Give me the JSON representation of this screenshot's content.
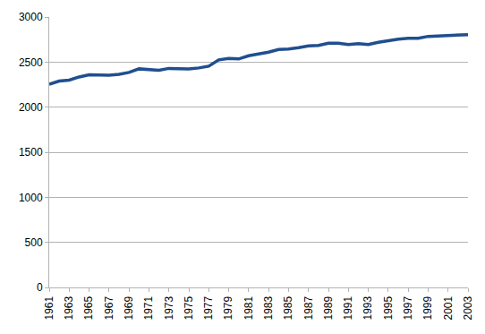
{
  "chart_data": {
    "type": "line",
    "x": [
      1961,
      1962,
      1963,
      1964,
      1965,
      1966,
      1967,
      1968,
      1969,
      1970,
      1971,
      1972,
      1973,
      1974,
      1975,
      1976,
      1977,
      1978,
      1979,
      1980,
      1981,
      1982,
      1983,
      1984,
      1985,
      1986,
      1987,
      1988,
      1989,
      1990,
      1991,
      1992,
      1993,
      1994,
      1995,
      1996,
      1997,
      1998,
      1999,
      2000,
      2001,
      2002,
      2003
    ],
    "values": [
      2255,
      2290,
      2300,
      2335,
      2360,
      2360,
      2355,
      2365,
      2385,
      2425,
      2415,
      2410,
      2430,
      2430,
      2425,
      2435,
      2455,
      2525,
      2540,
      2535,
      2570,
      2590,
      2610,
      2640,
      2645,
      2660,
      2680,
      2685,
      2710,
      2710,
      2695,
      2705,
      2695,
      2720,
      2740,
      2755,
      2765,
      2765,
      2785,
      2790,
      2790,
      2800,
      2805
    ],
    "color": "#1f4f8f",
    "xlim": [
      1961,
      2003
    ],
    "xticks": [
      1961,
      1963,
      1965,
      1967,
      1969,
      1971,
      1973,
      1975,
      1977,
      1979,
      1981,
      1983,
      1985,
      1987,
      1989,
      1991,
      1993,
      1995,
      1997,
      1999,
      2001,
      2003
    ],
    "ylim": [
      0,
      3000
    ],
    "yticks": [
      0,
      500,
      1000,
      1500,
      2000,
      2500,
      3000
    ],
    "grid": true
  }
}
